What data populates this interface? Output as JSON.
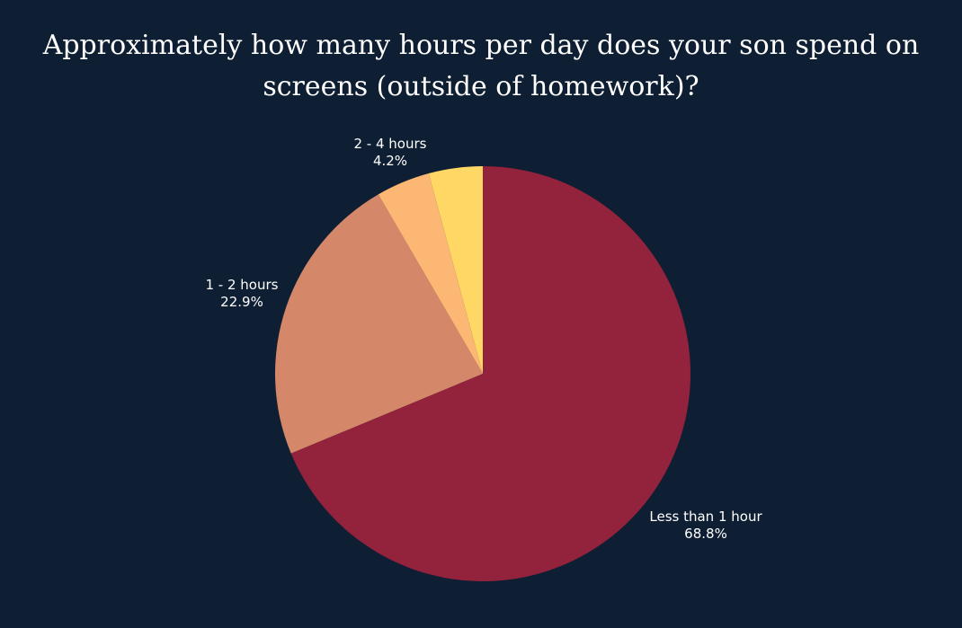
{
  "chart_data": {
    "type": "pie",
    "title": "Approximately how many hours per day does your son spend on screens (outside of homework)?",
    "slices": [
      {
        "label": "Less than 1 hour",
        "value": 68.8,
        "value_label": "68.8%",
        "color": "#93223c"
      },
      {
        "label": "1 - 2 hours",
        "value": 22.9,
        "value_label": "22.9%",
        "color": "#d5876a"
      },
      {
        "label": "2 - 4 hours",
        "value": 4.2,
        "value_label": "4.2%",
        "color": "#fbb773"
      },
      {
        "label": "",
        "value": 4.2,
        "value_label": "",
        "color": "#ffd764"
      }
    ],
    "background_color": "#0e1e33",
    "label_color": "#ffffff",
    "legend": "none"
  }
}
